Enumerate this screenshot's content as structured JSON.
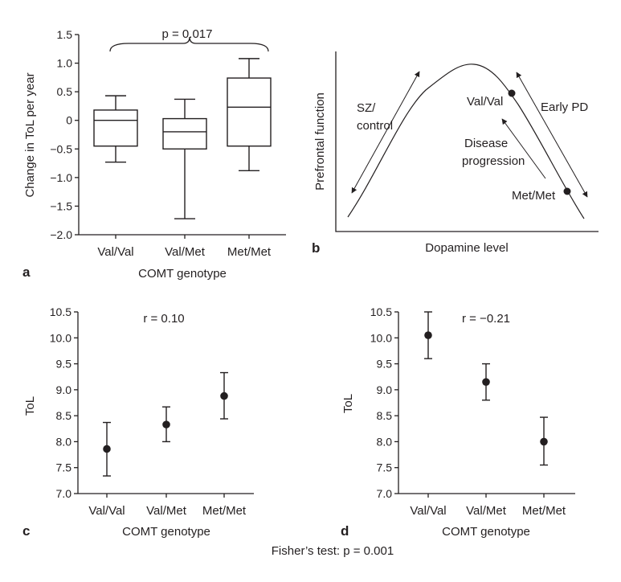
{
  "chart_data": [
    {
      "panel": "a",
      "type": "box",
      "ylabel": "Change in ToL per year",
      "xlabel": "COMT genotype",
      "categories": [
        "Val/Val",
        "Val/Met",
        "Met/Met"
      ],
      "ylim": [
        -2.0,
        1.5
      ],
      "yticks": [
        -2.0,
        -1.5,
        -1.0,
        -0.5,
        0,
        0.5,
        1.0,
        1.5
      ],
      "ytick_labels": [
        "−2.0",
        "−1.5",
        "−1.0",
        "−0.5",
        "0",
        "0.5",
        "1.0",
        "1.5"
      ],
      "boxes": [
        {
          "whisker_low": -0.73,
          "q1": -0.45,
          "median": 0.0,
          "q3": 0.18,
          "whisker_high": 0.43
        },
        {
          "whisker_low": -1.72,
          "q1": -0.5,
          "median": -0.2,
          "q3": 0.03,
          "whisker_high": 0.37
        },
        {
          "whisker_low": -0.88,
          "q1": -0.45,
          "median": 0.23,
          "q3": 0.74,
          "whisker_high": 1.08
        }
      ],
      "annotation": "p = 0.017"
    },
    {
      "panel": "b",
      "type": "line",
      "ylabel": "Prefrontal function",
      "xlabel": "Dopamine level",
      "labels": {
        "sz_line1": "SZ/",
        "sz_line2": "control",
        "valval": "Val/Val",
        "early_pd": "Early PD",
        "disease_line1": "Disease",
        "disease_line2": "progression",
        "metmet": "Met/Met"
      }
    },
    {
      "panel": "c",
      "type": "errorbar",
      "ylabel": "ToL",
      "xlabel": "COMT genotype",
      "categories": [
        "Val/Val",
        "Val/Met",
        "Met/Met"
      ],
      "ylim": [
        7.0,
        10.5
      ],
      "yticks": [
        7.0,
        7.5,
        8.0,
        8.5,
        9.0,
        9.5,
        10.0,
        10.5
      ],
      "ytick_labels": [
        "7.0",
        "7.5",
        "8.0",
        "8.5",
        "9.0",
        "9.5",
        "10.0",
        "10.5"
      ],
      "values": [
        7.86,
        8.33,
        8.88
      ],
      "err_low": [
        7.34,
        8.0,
        8.44
      ],
      "err_high": [
        8.37,
        8.67,
        9.33
      ],
      "annotation": "r = 0.10"
    },
    {
      "panel": "d",
      "type": "errorbar",
      "ylabel": "ToL",
      "xlabel": "COMT genotype",
      "categories": [
        "Val/Val",
        "Val/Met",
        "Met/Met"
      ],
      "ylim": [
        7.0,
        10.5
      ],
      "yticks": [
        7.0,
        7.5,
        8.0,
        8.5,
        9.0,
        9.5,
        10.0,
        10.5
      ],
      "ytick_labels": [
        "7.0",
        "7.5",
        "8.0",
        "8.5",
        "9.0",
        "9.5",
        "10.0",
        "10.5"
      ],
      "values": [
        10.05,
        9.15,
        8.0
      ],
      "err_low": [
        9.6,
        8.8,
        7.55
      ],
      "err_high": [
        10.5,
        9.5,
        8.47
      ],
      "annotation": "r = −0.21"
    }
  ],
  "footer": "Fisher’s test: p = 0.001"
}
